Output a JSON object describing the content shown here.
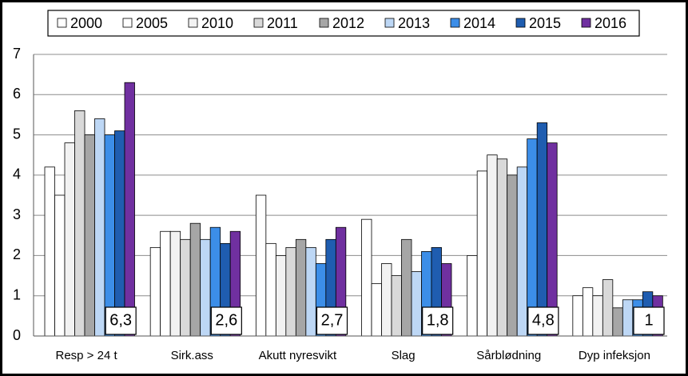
{
  "chart_data": {
    "type": "bar",
    "categories": [
      "Resp > 24 t",
      "Sirk.ass",
      "Akutt nyresvikt",
      "Slag",
      "Sårblødning",
      "Dyp infeksjon"
    ],
    "series": [
      {
        "name": "2000",
        "color": "#ffffff",
        "values": [
          4.2,
          2.2,
          3.5,
          2.9,
          2.0,
          1.0
        ]
      },
      {
        "name": "2005",
        "color": "#ffffff",
        "values": [
          3.5,
          2.6,
          2.3,
          1.3,
          4.1,
          1.2
        ]
      },
      {
        "name": "2010",
        "color": "#f2f2f2",
        "values": [
          4.8,
          2.6,
          2.0,
          1.8,
          4.5,
          1.0
        ]
      },
      {
        "name": "2011",
        "color": "#d9d9d9",
        "values": [
          5.6,
          2.4,
          2.2,
          1.5,
          4.4,
          1.4
        ]
      },
      {
        "name": "2012",
        "color": "#a6a6a6",
        "values": [
          5.0,
          2.8,
          2.4,
          2.4,
          4.0,
          0.7
        ]
      },
      {
        "name": "2013",
        "color": "#bdd7f5",
        "values": [
          5.4,
          2.4,
          2.2,
          1.6,
          4.2,
          0.9
        ]
      },
      {
        "name": "2014",
        "color": "#3c8ee8",
        "values": [
          5.0,
          2.7,
          1.8,
          2.1,
          4.9,
          0.9
        ]
      },
      {
        "name": "2015",
        "color": "#1f5db0",
        "values": [
          5.1,
          2.3,
          2.4,
          2.2,
          5.3,
          1.1
        ]
      },
      {
        "name": "2016",
        "color": "#7030a0",
        "values": [
          6.3,
          2.6,
          2.7,
          1.8,
          4.8,
          1.0
        ],
        "value_labels": [
          "6,3",
          "2,6",
          "2,7",
          "1,8",
          "4,8",
          "1"
        ]
      }
    ],
    "ylim": [
      0,
      7
    ],
    "yticks": [
      0,
      1,
      2,
      3,
      4,
      5,
      6,
      7
    ],
    "grid": true
  }
}
